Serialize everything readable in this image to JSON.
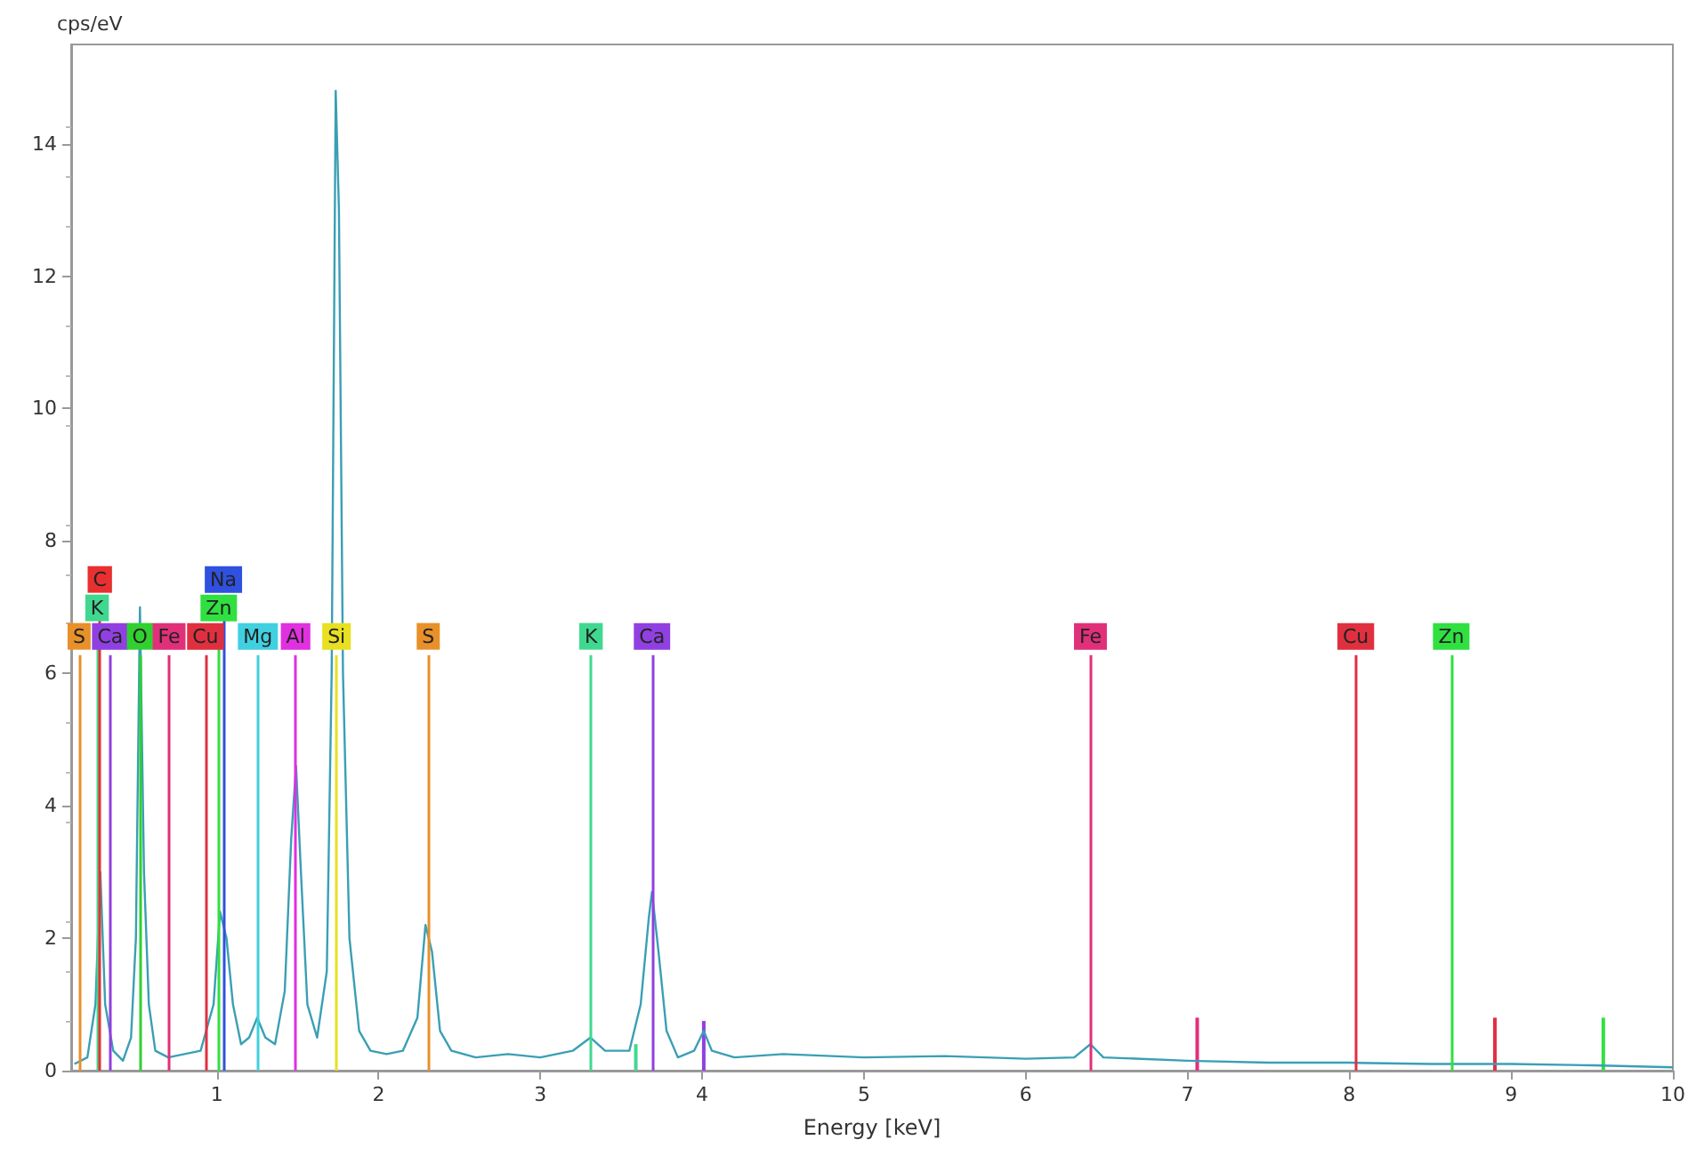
{
  "chart_data": {
    "type": "line",
    "xlabel": "Energy [keV]",
    "ylabel": "cps/eV",
    "xlim": [
      0.1,
      10
    ],
    "ylim": [
      0,
      15.5
    ],
    "xticks": [
      1,
      2,
      3,
      4,
      5,
      6,
      7,
      8,
      9,
      10
    ],
    "yticks": [
      0,
      2,
      4,
      6,
      8,
      10,
      12,
      14
    ],
    "grid": false,
    "marker": "none",
    "line_style": "solid",
    "series": [
      {
        "color": "#3a9fb5",
        "x": [
          0.12,
          0.2,
          0.25,
          0.28,
          0.31,
          0.36,
          0.42,
          0.47,
          0.5,
          0.525,
          0.55,
          0.58,
          0.62,
          0.7,
          0.8,
          0.9,
          0.98,
          1.02,
          1.06,
          1.1,
          1.15,
          1.2,
          1.25,
          1.3,
          1.36,
          1.42,
          1.46,
          1.49,
          1.52,
          1.56,
          1.62,
          1.68,
          1.71,
          1.735,
          1.755,
          1.78,
          1.82,
          1.88,
          1.95,
          2.05,
          2.15,
          2.24,
          2.29,
          2.33,
          2.38,
          2.45,
          2.6,
          2.8,
          3.0,
          3.2,
          3.31,
          3.4,
          3.55,
          3.62,
          3.67,
          3.69,
          3.73,
          3.78,
          3.85,
          3.95,
          4.01,
          4.06,
          4.2,
          4.5,
          5.0,
          5.5,
          6.0,
          6.3,
          6.4,
          6.48,
          7.0,
          7.5,
          8.0,
          8.5,
          9.0,
          9.5,
          10.0
        ],
        "values": [
          0.1,
          0.2,
          1.0,
          3.0,
          1.0,
          0.3,
          0.15,
          0.5,
          2.0,
          7.0,
          3.0,
          1.0,
          0.3,
          0.2,
          0.25,
          0.3,
          1.0,
          2.4,
          2.0,
          1.0,
          0.4,
          0.5,
          0.8,
          0.5,
          0.4,
          1.2,
          3.5,
          4.6,
          3.0,
          1.0,
          0.5,
          1.5,
          6.0,
          14.8,
          13.0,
          6.0,
          2.0,
          0.6,
          0.3,
          0.25,
          0.3,
          0.8,
          2.2,
          1.8,
          0.6,
          0.3,
          0.2,
          0.25,
          0.2,
          0.3,
          0.5,
          0.3,
          0.3,
          1.0,
          2.3,
          2.7,
          1.8,
          0.6,
          0.2,
          0.3,
          0.6,
          0.3,
          0.2,
          0.25,
          0.2,
          0.22,
          0.18,
          0.2,
          0.4,
          0.2,
          0.15,
          0.12,
          0.12,
          0.1,
          0.1,
          0.08,
          0.05
        ]
      },
      {
        "type": "bar",
        "x": [
          3.59,
          4.01,
          7.06,
          8.9,
          9.57
        ],
        "values": [
          0.4,
          0.75,
          0.8,
          0.8,
          0.8
        ],
        "colors": [
          "#40d890",
          "#9040e0",
          "#e0307a",
          "#e03040",
          "#30e040"
        ]
      }
    ],
    "ref_lines": [
      {
        "axis": "x",
        "value": 0.149,
        "label": "S",
        "color": "#e8902a"
      },
      {
        "axis": "x",
        "value": 0.26,
        "label": "K",
        "color": "#40d890"
      },
      {
        "axis": "x",
        "value": 0.277,
        "label": "C",
        "color": "#e83030"
      },
      {
        "axis": "x",
        "value": 0.341,
        "label": "Ca",
        "color": "#9040e0"
      },
      {
        "axis": "x",
        "value": 0.525,
        "label": "O",
        "color": "#30d030"
      },
      {
        "axis": "x",
        "value": 0.705,
        "label": "Fe",
        "color": "#e0307a"
      },
      {
        "axis": "x",
        "value": 0.93,
        "label": "Cu",
        "color": "#e03040"
      },
      {
        "axis": "x",
        "value": 1.012,
        "label": "Zn",
        "color": "#30e040"
      },
      {
        "axis": "x",
        "value": 1.041,
        "label": "Na",
        "color": "#3050e0"
      },
      {
        "axis": "x",
        "value": 1.254,
        "label": "Mg",
        "color": "#40d0e0"
      },
      {
        "axis": "x",
        "value": 1.487,
        "label": "Al",
        "color": "#e030e0"
      },
      {
        "axis": "x",
        "value": 1.74,
        "label": "Si",
        "color": "#e8e020"
      },
      {
        "axis": "x",
        "value": 2.307,
        "label": "S",
        "color": "#e8902a"
      },
      {
        "axis": "x",
        "value": 3.313,
        "label": "K",
        "color": "#40d890"
      },
      {
        "axis": "x",
        "value": 3.69,
        "label": "Ca",
        "color": "#9040e0"
      },
      {
        "axis": "x",
        "value": 6.4,
        "label": "Fe",
        "color": "#e0307a"
      },
      {
        "axis": "x",
        "value": 8.04,
        "label": "Cu",
        "color": "#e03040"
      },
      {
        "axis": "x",
        "value": 8.63,
        "label": "Zn",
        "color": "#30e040"
      }
    ]
  }
}
